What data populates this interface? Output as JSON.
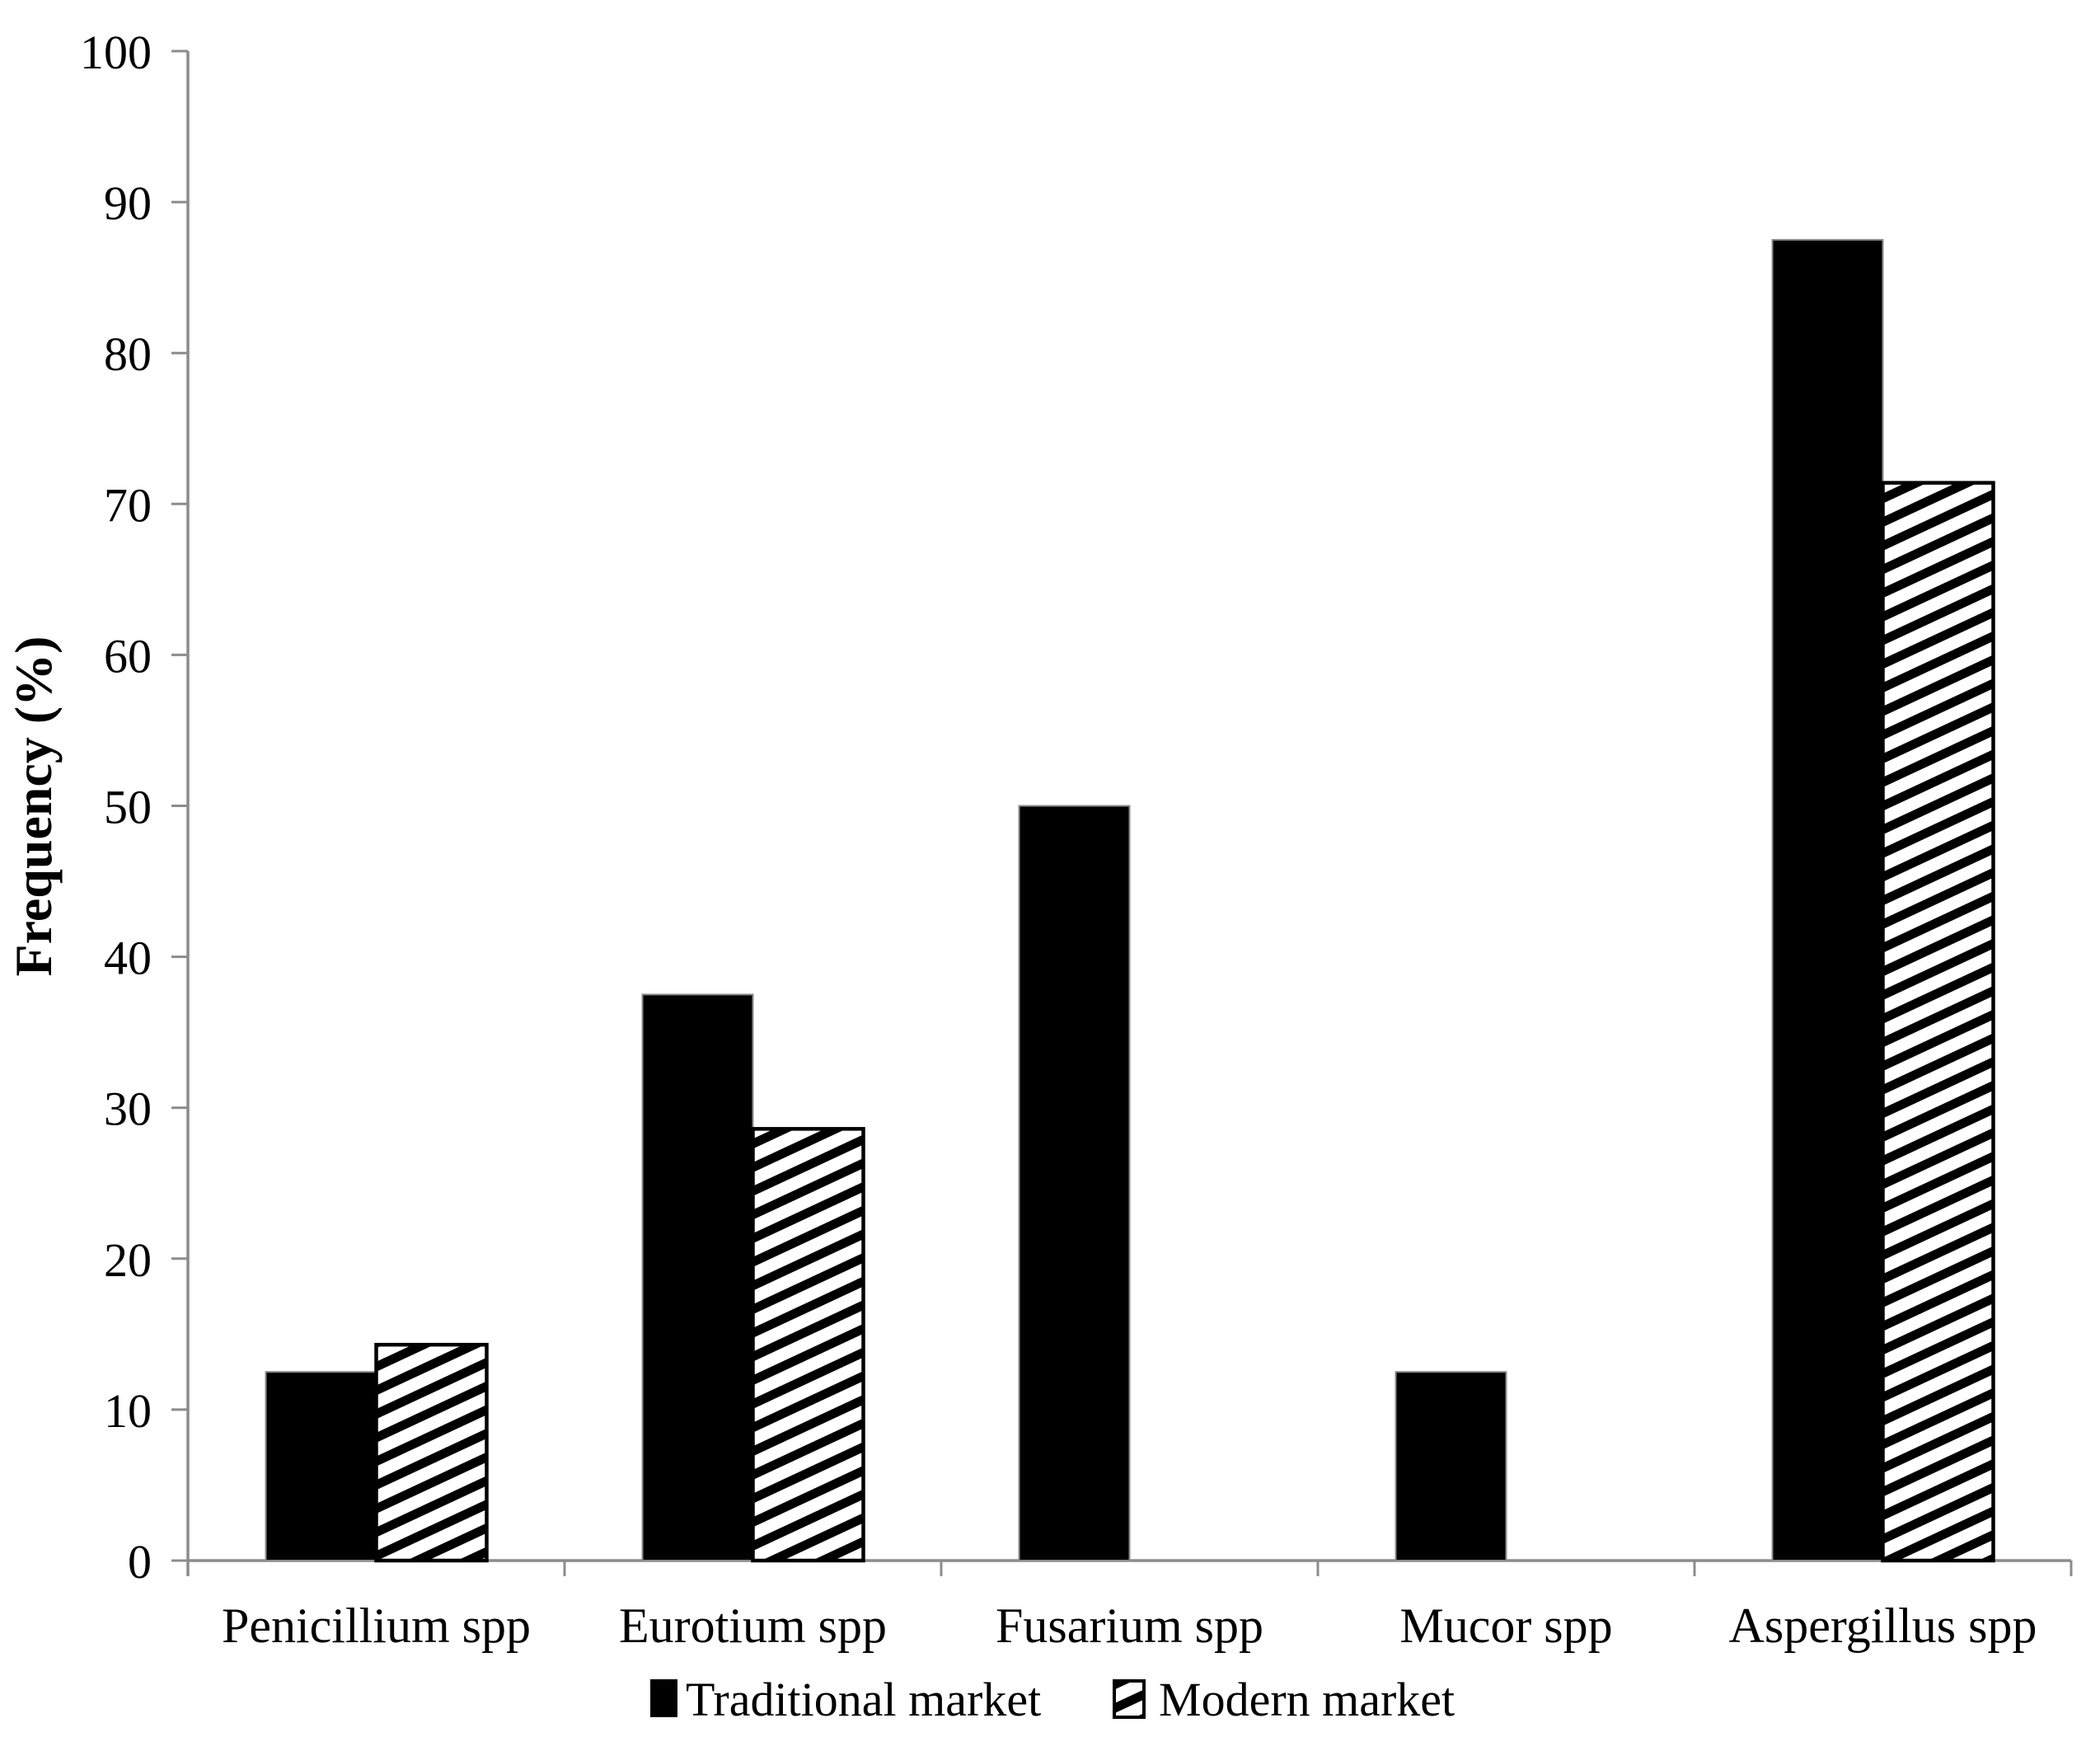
{
  "chart_data": {
    "type": "bar",
    "title": "",
    "xlabel": "",
    "ylabel": "Frequency (%)",
    "ylim": [
      0,
      100
    ],
    "ytick_step": 10,
    "ytick_labels": [
      "0",
      "10",
      "20",
      "30",
      "40",
      "50",
      "60",
      "70",
      "80",
      "90",
      "100"
    ],
    "grid": false,
    "legend_position": "bottom-center",
    "categories": [
      "Penicillium spp",
      "Eurotium spp",
      "Fusarium spp",
      "Mucor spp",
      "Aspergillus spp"
    ],
    "series": [
      {
        "name": "Traditional market",
        "style": "solid",
        "color": "#000000",
        "values": [
          12.5,
          37.5,
          50,
          12.5,
          87.5
        ]
      },
      {
        "name": "Modern market",
        "style": "diagonal-hatch",
        "color": "#000000",
        "values": [
          14.3,
          28.6,
          0,
          0,
          71.4
        ]
      }
    ],
    "colors": {
      "axis": "#8c8c8c",
      "text": "#000000",
      "background": "#ffffff",
      "bar_fill": "#000000",
      "hatch_stripe": "#000000"
    }
  }
}
